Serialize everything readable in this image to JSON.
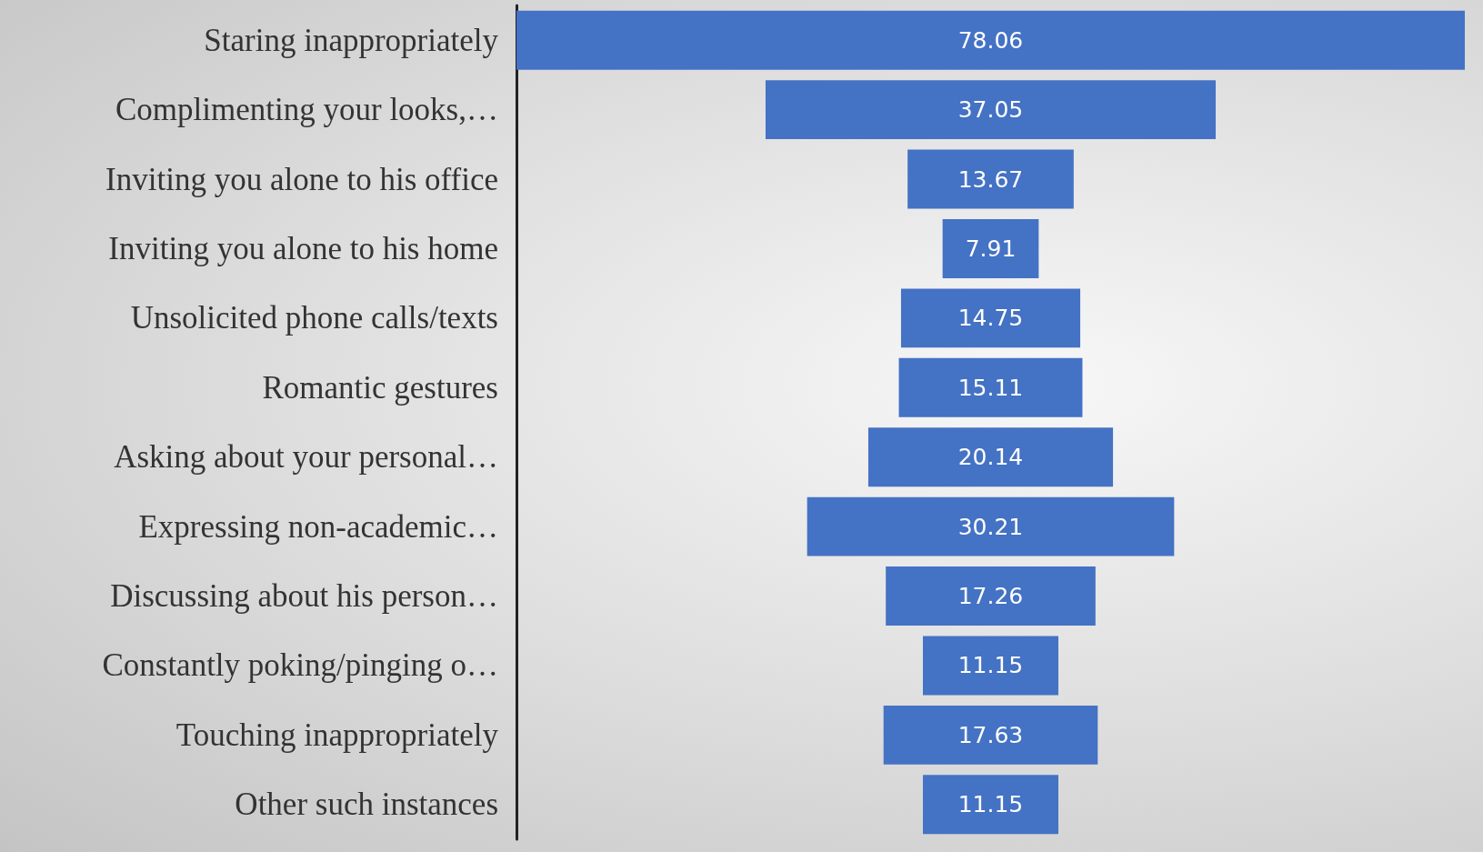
{
  "chart_data": {
    "type": "other",
    "data_labels": true,
    "categories": [
      "Staring inappropriately",
      "Complimenting your looks,…",
      "Inviting you alone to his office",
      "Inviting you alone to his home",
      "Unsolicited phone calls/texts",
      "Romantic gestures",
      "Asking about your personal…",
      "Expressing non-academic…",
      "Discussing about his person…",
      "Constantly poking/pinging o…",
      "Touching inappropriately",
      "Other such instances"
    ],
    "values": [
      78.06,
      37.05,
      13.67,
      7.91,
      14.75,
      15.11,
      20.14,
      30.21,
      17.26,
      11.15,
      17.63,
      11.15
    ],
    "color": "#4472c4"
  }
}
